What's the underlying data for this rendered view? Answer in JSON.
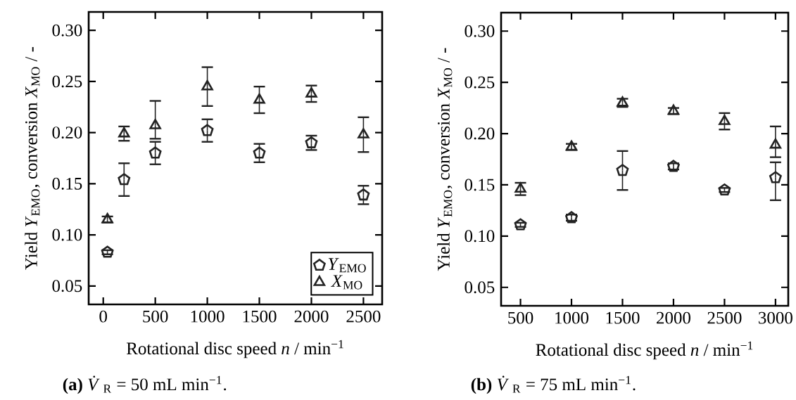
{
  "chart_data": [
    {
      "type": "scatter",
      "xlabel": "Rotational disc speed *n* / min$^{−1}$",
      "ylabel": "Yield *Y*$_{EMO}$, conversion *X*$_{MO}$ / -",
      "xlim": [
        -140,
        2680
      ],
      "ylim": [
        0.032,
        0.318
      ],
      "xticks": [
        0,
        500,
        1000,
        1500,
        2000,
        2500
      ],
      "yticks": [
        0.05,
        {
          "value": 0.1,
          "label": "0.10"
        },
        0.15,
        {
          "value": 0.2,
          "label": "0.20"
        },
        0.25,
        {
          "value": 0.3,
          "label": "0.30"
        }
      ],
      "x": [
        40,
        200,
        500,
        1000,
        1500,
        2000,
        2500
      ],
      "legend": "bottom right",
      "annotations": [
        "**(a)** *V̇*$_{R}$ = 50 mL min$^{−1}$."
      ],
      "series": [
        {
          "name": "*Y*$_{EMO}$",
          "color": "#222222",
          "values": [
            0.083,
            0.154,
            0.18,
            0.202,
            0.18,
            0.19,
            0.139
          ],
          "errors": [
            0.002,
            0.016,
            0.011,
            0.011,
            0.009,
            0.007,
            0.009
          ]
        },
        {
          "name": "*X*$_{MO}$",
          "color": "#222222",
          "marker": "triangle",
          "values": [
            0.115,
            0.199,
            0.207,
            0.245,
            0.232,
            0.238,
            0.198
          ],
          "errors": [
            0.003,
            0.007,
            [
              0.194,
              0.231
            ],
            0.019,
            0.013,
            0.008,
            0.017
          ]
        }
      ]
    },
    {
      "type": "scatter",
      "xlabel": "Rotational disc speed *n* / min$^{−1}$",
      "ylabel": "Yield *Y*$_{EMO}$, conversion *X*$_{MO}$ / -",
      "xlim": [
        310,
        3125
      ],
      "ylim": [
        0.032,
        0.318
      ],
      "xticks": [
        500,
        1000,
        1500,
        2000,
        2500,
        3000
      ],
      "yticks": [
        0.05,
        {
          "value": 0.1,
          "label": "0.10"
        },
        0.15,
        {
          "value": 0.2,
          "label": "0.20"
        },
        0.25,
        {
          "value": 0.3,
          "label": "0.30"
        }
      ],
      "x": [
        500,
        1000,
        1500,
        2000,
        2500,
        3000
      ],
      "annotations": [
        "**(b)** *V̇*$_{R}$ = 75 mL min$^{−1}$."
      ],
      "series": [
        {
          "color": "#222222",
          "values": [
            0.111,
            0.118,
            0.164,
            0.168,
            0.145,
            0.157
          ],
          "errors": [
            0.002,
            0.003,
            0.019,
            0.003,
            0.002,
            [
              0.135,
              0.172
            ]
          ]
        },
        {
          "color": "#222222",
          "marker": "triangle",
          "values": [
            0.146,
            0.187,
            0.23,
            0.222,
            0.212,
            0.189
          ],
          "errors": [
            0.006,
            0.003,
            0.004,
            0.003,
            0.008,
            [
              0.177,
              0.207
            ]
          ]
        }
      ]
    }
  ]
}
